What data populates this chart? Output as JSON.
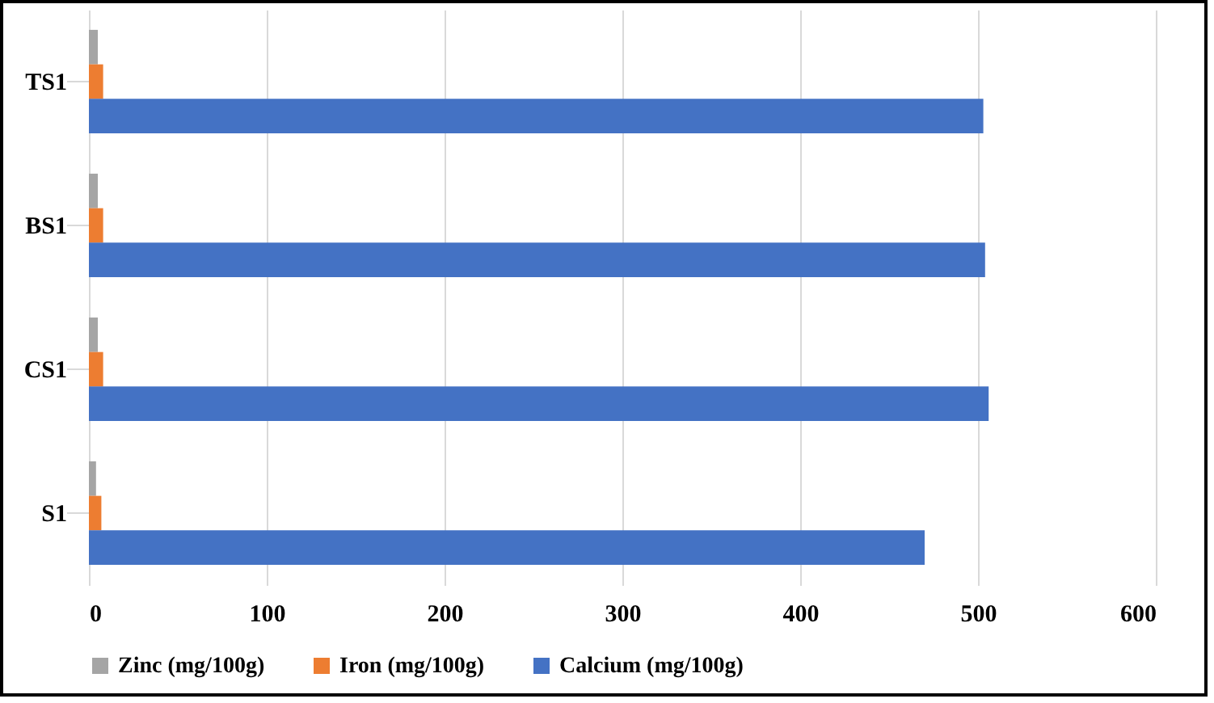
{
  "chart_data": {
    "type": "bar",
    "orientation": "horizontal",
    "categories": [
      "TS1",
      "BS1",
      "CS1",
      "S1"
    ],
    "series": [
      {
        "name": "Zinc (mg/100g)",
        "color": "#a5a5a5",
        "values": [
          5,
          5,
          5,
          4
        ]
      },
      {
        "name": "Iron (mg/100g)",
        "color": "#ed7d31",
        "values": [
          8,
          8,
          8,
          7
        ]
      },
      {
        "name": "Calcium (mg/100g)",
        "color": "#4472c4",
        "values": [
          503,
          504,
          506,
          470
        ]
      }
    ],
    "xlim": [
      0,
      600
    ],
    "xticks": [
      0,
      100,
      200,
      300,
      400,
      500,
      600
    ],
    "grid": "x",
    "legend": "bottom"
  }
}
